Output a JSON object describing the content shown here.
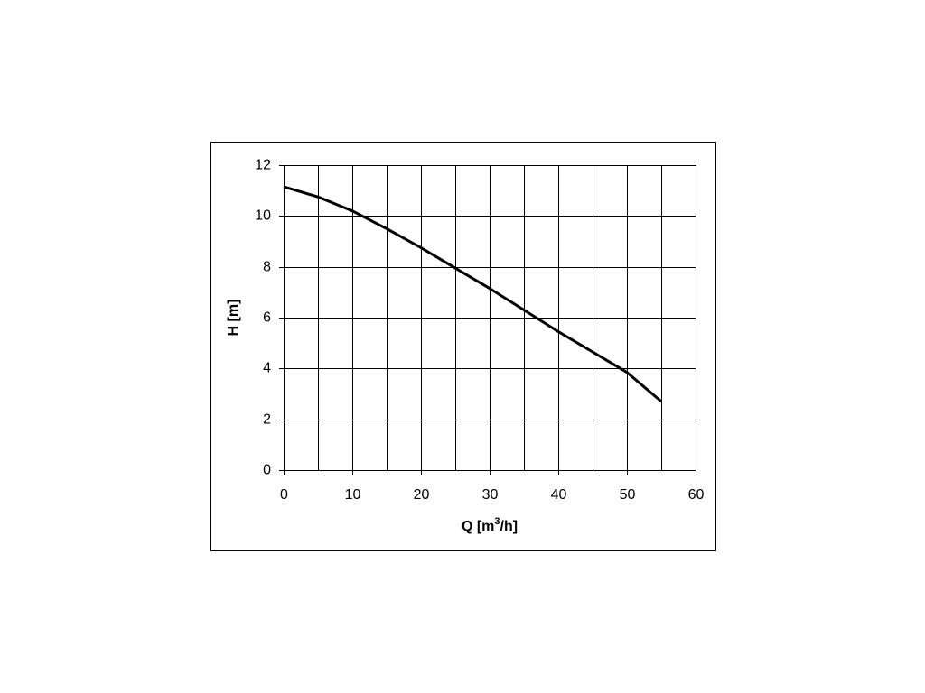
{
  "chart_data": {
    "type": "line",
    "x_label": {
      "prefix": "Q [m",
      "sup": "3",
      "suffix": "/h]"
    },
    "y_label": "H [m]",
    "x": [
      0,
      5,
      10,
      15,
      20,
      25,
      30,
      35,
      40,
      45,
      50,
      55
    ],
    "series": [
      {
        "color": "#000000",
        "values": [
          11.15,
          10.75,
          10.2,
          9.5,
          8.75,
          7.95,
          7.15,
          6.3,
          5.45,
          4.65,
          3.85,
          2.7
        ]
      }
    ],
    "xlim": [
      0,
      60
    ],
    "xticks": [
      0,
      10,
      20,
      30,
      40,
      50,
      60
    ],
    "xminorgrid": [
      5,
      15,
      25,
      35,
      45,
      55
    ],
    "ylim": [
      0,
      12
    ],
    "yticks": [
      0,
      2,
      4,
      6,
      8,
      10,
      12
    ],
    "grid": true
  }
}
